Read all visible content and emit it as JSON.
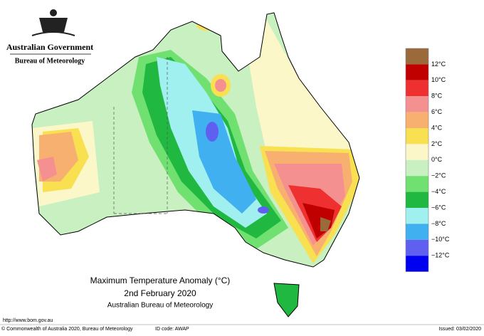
{
  "header": {
    "government": "Australian Government",
    "bureau": "Bureau of Meteorology"
  },
  "map": {
    "title": "Maximum Temperature Anomaly (°C)",
    "date": "2nd February 2020",
    "source": "Australian Bureau of Meteorology"
  },
  "legend": {
    "colors": [
      "#9a6a3a",
      "#c00000",
      "#ee3030",
      "#f59090",
      "#f8b070",
      "#f8e050",
      "#fbf7c8",
      "#c8f0c0",
      "#70e070",
      "#20b840",
      "#a0f0f0",
      "#40b0f0",
      "#6060f0",
      "#0000f0"
    ],
    "labels": [
      "12°C",
      "10°C",
      "8°C",
      "6°C",
      "4°C",
      "2°C",
      "0°C",
      "−2°C",
      "−4°C",
      "−6°C",
      "−8°C",
      "−10°C",
      "−12°C"
    ]
  },
  "footer": {
    "url": "http://www.bom.gov.au",
    "copyright": "© Commonwealth of Australia 2020, Bureau of Meteorology",
    "id_code": "ID code: AWAP",
    "issued": "Issued: 03/02/2020"
  }
}
